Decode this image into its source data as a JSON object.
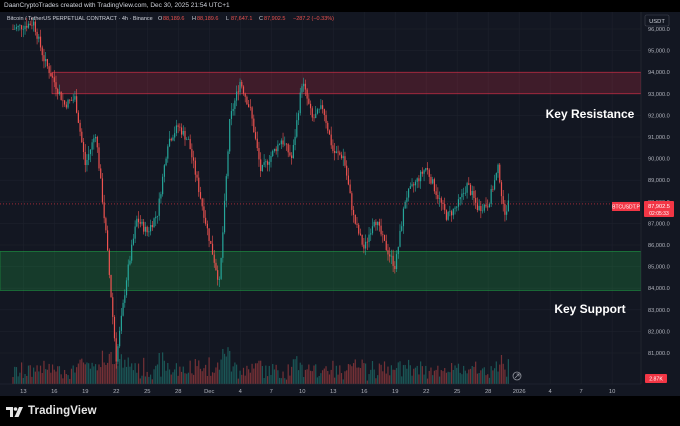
{
  "header": {
    "created_by": "DaanCryptoTrades created with TradingView.com, Dec 30, 2025 21:54 UTC+1"
  },
  "legend": {
    "symbol": "Bitcoin / TetherUS PERPETUAL CONTRACT · 4h · Binance",
    "open_label": "O",
    "open": "88,189.6",
    "high_label": "H",
    "high": "88,189.6",
    "low_label": "L",
    "low": "87,647.1",
    "close_label": "C",
    "close": "87,902.5",
    "change": "−287.2 (−0.33%)",
    "up_color": "#26a69a",
    "down_color": "#ef5350"
  },
  "price_scale": {
    "currency": "USDT",
    "ticks": [
      "96,000.0",
      "95,000.0",
      "94,000.0",
      "93,000.0",
      "92,000.0",
      "91,000.0",
      "90,000.0",
      "89,000.0",
      "88,000.0",
      "87,000.0",
      "86,000.0",
      "85,000.0",
      "84,000.0",
      "83,000.0",
      "82,000.0",
      "81,000.0"
    ]
  },
  "last_price": {
    "symbol_tag": "BTCUSDT.P",
    "price": "87,902.5",
    "countdown": "02:05:33",
    "color": "#f23645"
  },
  "volume_tag": {
    "value": "2.87K"
  },
  "time_axis": {
    "ticks": [
      "13",
      "16",
      "19",
      "22",
      "25",
      "28",
      "Dec",
      "4",
      "7",
      "10",
      "13",
      "16",
      "19",
      "22",
      "25",
      "28",
      "2026",
      "4",
      "7",
      "10"
    ]
  },
  "zones": {
    "resistance": {
      "label": "Key Resistance",
      "from": 93000,
      "to": 94000,
      "color": "#e0304a"
    },
    "support": {
      "label": "Key Support",
      "from": 83900,
      "to": 85700,
      "color": "#1f9c45"
    }
  },
  "branding": {
    "logo_text": "TradingView"
  },
  "chart_data": {
    "type": "candlestick",
    "title": "Bitcoin / TetherUS PERPETUAL CONTRACT · 4h · Binance",
    "interval": "4h",
    "ylim": [
      80000,
      97000
    ],
    "x_axis": "date (Nov 12, 2025 – Jan 11, 2026)",
    "grid": true,
    "keypoints": [
      {
        "t": "Nov 12",
        "price": 96000
      },
      {
        "t": "Nov 14",
        "price": 96300
      },
      {
        "t": "Nov 15",
        "price": 94600
      },
      {
        "t": "Nov 17",
        "price": 92500
      },
      {
        "t": "Nov 18",
        "price": 92800
      },
      {
        "t": "Nov 19",
        "price": 89700
      },
      {
        "t": "Nov 20",
        "price": 91200
      },
      {
        "t": "Nov 21",
        "price": 86500
      },
      {
        "t": "Nov 22",
        "price": 80700
      },
      {
        "t": "Nov 23",
        "price": 84500
      },
      {
        "t": "Nov 24",
        "price": 87200
      },
      {
        "t": "Nov 25",
        "price": 86600
      },
      {
        "t": "Nov 26",
        "price": 87500
      },
      {
        "t": "Nov 27",
        "price": 90800
      },
      {
        "t": "Nov 28",
        "price": 91500
      },
      {
        "t": "Nov 29",
        "price": 90800
      },
      {
        "t": "Dec 1",
        "price": 86300
      },
      {
        "t": "Dec 2",
        "price": 84200
      },
      {
        "t": "Dec 3",
        "price": 91800
      },
      {
        "t": "Dec 4",
        "price": 93600
      },
      {
        "t": "Dec 5",
        "price": 92200
      },
      {
        "t": "Dec 6",
        "price": 89400
      },
      {
        "t": "Dec 8",
        "price": 90900
      },
      {
        "t": "Dec 9",
        "price": 90000
      },
      {
        "t": "Dec 10",
        "price": 93600
      },
      {
        "t": "Dec 11",
        "price": 91800
      },
      {
        "t": "Dec 12",
        "price": 92400
      },
      {
        "t": "Dec 13",
        "price": 90300
      },
      {
        "t": "Dec 14",
        "price": 90100
      },
      {
        "t": "Dec 15",
        "price": 87200
      },
      {
        "t": "Dec 16",
        "price": 85800
      },
      {
        "t": "Dec 17",
        "price": 87300
      },
      {
        "t": "Dec 18",
        "price": 86000
      },
      {
        "t": "Dec 19",
        "price": 85000
      },
      {
        "t": "Dec 20",
        "price": 88200
      },
      {
        "t": "Dec 22",
        "price": 89600
      },
      {
        "t": "Dec 23",
        "price": 88400
      },
      {
        "t": "Dec 24",
        "price": 87300
      },
      {
        "t": "Dec 25",
        "price": 87800
      },
      {
        "t": "Dec 26",
        "price": 88800
      },
      {
        "t": "Dec 27",
        "price": 87700
      },
      {
        "t": "Dec 28",
        "price": 87900
      },
      {
        "t": "Dec 29",
        "price": 89600
      },
      {
        "t": "Dec 29",
        "price": 87500
      },
      {
        "t": "Dec 30",
        "price": 87902.5
      }
    ]
  }
}
